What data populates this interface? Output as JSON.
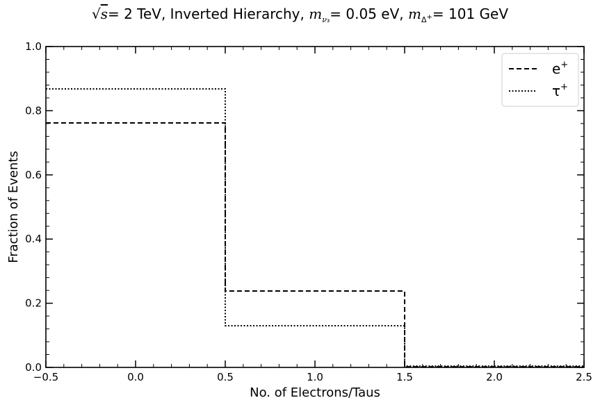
{
  "chart_data": {
    "type": "line",
    "step": "histogram",
    "title": {
      "prefix": "= 2 TeV, Inverted Hierarchy, ",
      "mnu_label": "= 0.05 eV, ",
      "mdelta_label": "= 101 GeV"
    },
    "xlabel": "No. of Electrons/Taus",
    "ylabel": "Fraction of Events",
    "xlim": [
      -0.5,
      2.5
    ],
    "ylim": [
      0.0,
      1.0
    ],
    "xticks": [
      "−0.5",
      "0.0",
      "0.5",
      "1.0",
      "1.5",
      "2.0",
      "2.5"
    ],
    "yticks": [
      "0.0",
      "0.2",
      "0.4",
      "0.6",
      "0.8",
      "1.0"
    ],
    "bin_edges": [
      -0.5,
      0.5,
      1.5,
      2.5
    ],
    "series": [
      {
        "name": "e",
        "sup": "+",
        "style": "dashed",
        "color": "#000000",
        "values": [
          0.762,
          0.238,
          0.002
        ]
      },
      {
        "name": "τ",
        "sup": "+",
        "style": "dotted",
        "color": "#000000",
        "values": [
          0.868,
          0.13,
          0.004
        ]
      }
    ],
    "legend": "top-right",
    "grid": false
  }
}
